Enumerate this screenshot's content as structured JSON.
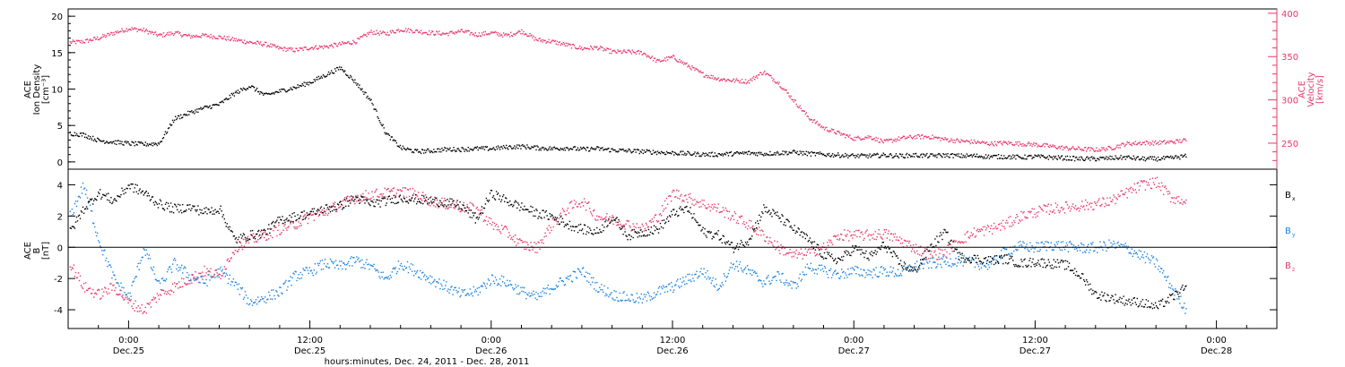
{
  "figure": {
    "x_title": "hours:minutes, Dec. 24, 2011 - Dec. 28, 2011",
    "x_ticks": [
      {
        "time": "0:00",
        "date": "Dec.25",
        "hour": 0
      },
      {
        "time": "12:00",
        "date": "Dec.25",
        "hour": 12
      },
      {
        "time": "0:00",
        "date": "Dec.26",
        "hour": 24
      },
      {
        "time": "12:00",
        "date": "Dec.26",
        "hour": 36
      },
      {
        "time": "0:00",
        "date": "Dec.27",
        "hour": 48
      },
      {
        "time": "12:00",
        "date": "Dec.27",
        "hour": 60
      },
      {
        "time": "0:00",
        "date": "Dec.28",
        "hour": 72
      }
    ],
    "x_range_hours": [
      -4,
      76
    ]
  },
  "colors": {
    "black": "#000000",
    "red": "#e8386a",
    "blue": "#1a82e0"
  },
  "chart_data": [
    {
      "type": "scatter",
      "panel": "top",
      "ylabel_left": [
        "ACE",
        "Ion Density",
        "[cm⁻³]"
      ],
      "ylabel_right": [
        "ACE",
        "Velocity",
        "[km/s]"
      ],
      "ylim_left": [
        -1,
        21
      ],
      "ylim_right": [
        220,
        405
      ],
      "yticks_left": [
        0,
        5,
        10,
        15,
        20
      ],
      "yticks_right": [
        250,
        300,
        350,
        400
      ],
      "series": [
        {
          "axis": "left",
          "color": "black",
          "x": [
            -3.9,
            -3,
            -2,
            -1,
            0,
            1,
            2,
            3,
            4,
            5,
            6,
            7,
            8,
            9,
            10,
            11,
            12,
            13,
            14,
            15,
            16,
            17,
            18,
            19,
            20,
            21,
            22,
            23,
            24,
            25,
            26,
            27,
            28,
            29,
            30,
            31,
            32,
            33,
            34,
            35,
            36,
            37,
            38,
            39,
            40,
            41,
            42,
            43,
            44,
            45,
            46,
            47,
            48,
            49,
            50,
            51,
            52,
            53,
            54,
            55,
            56,
            57,
            58,
            59,
            60,
            61,
            62,
            63,
            64,
            65,
            66,
            67,
            68,
            69,
            70
          ],
          "y": [
            4,
            3.8,
            3,
            2.8,
            2.6,
            2.5,
            2.6,
            6,
            6.8,
            7.5,
            8,
            9.5,
            10.5,
            9.2,
            9.8,
            10.3,
            11,
            12,
            13,
            11,
            8.5,
            4,
            2,
            1.5,
            1.6,
            1.8,
            1.8,
            1.9,
            1.9,
            2.1,
            2.2,
            2,
            1.9,
            2,
            1.8,
            1.9,
            1.7,
            1.6,
            1.5,
            1.4,
            1.3,
            1.2,
            1.1,
            1.1,
            1.2,
            1.3,
            1.2,
            1.3,
            1.4,
            1.2,
            1.1,
            1,
            0.9,
            0.9,
            1,
            0.9,
            1,
            0.9,
            1,
            0.9,
            0.9,
            0.8,
            0.8,
            0.7,
            0.8,
            0.7,
            0.6,
            0.5,
            0.5,
            0.6,
            0.7,
            0.5,
            0.5,
            0.6,
            0.9
          ]
        },
        {
          "axis": "right",
          "color": "red",
          "x": [
            -3.9,
            -3,
            -2,
            -1,
            0,
            1,
            2,
            3,
            4,
            5,
            6,
            7,
            8,
            9,
            10,
            11,
            12,
            13,
            14,
            15,
            16,
            17,
            18,
            19,
            20,
            21,
            22,
            23,
            24,
            25,
            26,
            27,
            28,
            29,
            30,
            31,
            32,
            33,
            34,
            35,
            36,
            37,
            38,
            39,
            40,
            41,
            42,
            43,
            44,
            45,
            46,
            47,
            48,
            49,
            50,
            51,
            52,
            53,
            54,
            55,
            56,
            57,
            58,
            59,
            60,
            61,
            62,
            63,
            64,
            65,
            66,
            67,
            68,
            69,
            70
          ],
          "y": [
            367,
            368,
            372,
            378,
            383,
            381,
            375,
            378,
            374,
            375,
            373,
            370,
            367,
            365,
            360,
            358,
            361,
            362,
            365,
            368,
            379,
            377,
            382,
            380,
            378,
            377,
            380,
            376,
            378,
            375,
            380,
            370,
            368,
            364,
            360,
            361,
            356,
            356,
            355,
            345,
            350,
            340,
            330,
            325,
            323,
            322,
            333,
            320,
            300,
            280,
            268,
            262,
            256,
            258,
            252,
            256,
            258,
            258,
            255,
            253,
            252,
            250,
            251,
            250,
            249,
            247,
            245,
            244,
            243,
            245,
            250,
            251,
            251,
            252,
            254
          ]
        }
      ]
    },
    {
      "type": "scatter",
      "panel": "bottom",
      "ylabel_left": [
        "ACE",
        "B",
        "[nT]"
      ],
      "ylim": [
        -5.2,
        5
      ],
      "yticks": [
        4,
        2,
        0,
        -2,
        -4
      ],
      "zero_line": true,
      "legend": [
        {
          "label": "B",
          "sub": "x",
          "color": "black"
        },
        {
          "label": "B",
          "sub": "y",
          "color": "blue"
        },
        {
          "label": "B",
          "sub": "z",
          "color": "red"
        }
      ],
      "series": [
        {
          "name": "Bx",
          "color": "black",
          "x": [
            -3.9,
            -3,
            -2,
            -1,
            0,
            1,
            2,
            3,
            4,
            5,
            6,
            7,
            8,
            9,
            10,
            11,
            12,
            13,
            14,
            15,
            16,
            17,
            18,
            19,
            20,
            21,
            22,
            23,
            24,
            25,
            26,
            27,
            28,
            29,
            30,
            31,
            32,
            33,
            34,
            35,
            36,
            37,
            38,
            39,
            40,
            41,
            42,
            43,
            44,
            45,
            46,
            47,
            48,
            49,
            50,
            51,
            52,
            53,
            54,
            55,
            56,
            57,
            58,
            59,
            60,
            61,
            62,
            63,
            64,
            65,
            66,
            67,
            68,
            69,
            70
          ],
          "y": [
            1,
            2.5,
            3.5,
            3,
            4,
            3.5,
            2.8,
            2.5,
            2.6,
            2.3,
            2.5,
            0.5,
            0.8,
            1,
            1.8,
            2,
            2.2,
            2.5,
            2.7,
            3.2,
            2.8,
            3,
            3.2,
            3.1,
            3,
            2.9,
            2.7,
            1.8,
            3.5,
            3,
            2.6,
            2.2,
            2,
            1.5,
            1.2,
            1,
            2,
            0.8,
            1,
            1.2,
            2.2,
            2.5,
            1,
            0.8,
            0,
            0.5,
            2.5,
            2,
            1.2,
            0.5,
            -0.5,
            -0.8,
            0,
            -0.6,
            0.2,
            -1,
            -1.5,
            0,
            1,
            -0.6,
            -0.7,
            -0.8,
            -0.7,
            -1,
            -0.9,
            -1,
            -1.1,
            -1.8,
            -3,
            -3.2,
            -3.4,
            -3.5,
            -3.8,
            -3.2,
            -2.5
          ]
        },
        {
          "name": "By",
          "color": "blue",
          "x": [
            -3.9,
            -3,
            -2,
            -1,
            0,
            1,
            2,
            3,
            4,
            5,
            6,
            7,
            8,
            9,
            10,
            11,
            12,
            13,
            14,
            15,
            16,
            17,
            18,
            19,
            20,
            21,
            22,
            23,
            24,
            25,
            26,
            27,
            28,
            29,
            30,
            31,
            32,
            33,
            34,
            35,
            36,
            37,
            38,
            39,
            40,
            41,
            42,
            43,
            44,
            45,
            46,
            47,
            48,
            49,
            50,
            51,
            52,
            53,
            54,
            55,
            56,
            57,
            58,
            59,
            60,
            61,
            62,
            63,
            64,
            65,
            66,
            67,
            68,
            69,
            70
          ],
          "y": [
            2,
            4,
            0.5,
            -2,
            -3.2,
            0,
            -2.5,
            -1,
            -1.8,
            -2.2,
            -1.5,
            -2.3,
            -3.5,
            -3.2,
            -2.8,
            -1.8,
            -1.5,
            -1,
            -1.2,
            -0.8,
            -1.2,
            -2,
            -1,
            -1.5,
            -2,
            -2.5,
            -3,
            -2.8,
            -2,
            -2.2,
            -2.8,
            -3.2,
            -2.5,
            -2,
            -1.5,
            -2.5,
            -3,
            -3.2,
            -3.3,
            -2.8,
            -2.5,
            -2,
            -1.5,
            -2.5,
            -1,
            -1.5,
            -2.2,
            -1.8,
            -2.5,
            -1.2,
            -1.5,
            -1.7,
            -1.5,
            -1.6,
            -1.5,
            -1.6,
            -1.2,
            -1,
            -0.9,
            -0.8,
            -1,
            -1.1,
            -0.2,
            0.1,
            0,
            0.2,
            0.1,
            0,
            0,
            0.2,
            0,
            -0.5,
            -1,
            -2.5,
            -4
          ]
        },
        {
          "name": "Bz",
          "color": "red",
          "x": [
            -3.9,
            -3,
            -2,
            -1,
            0,
            1,
            2,
            3,
            4,
            5,
            6,
            7,
            8,
            9,
            10,
            11,
            12,
            13,
            14,
            15,
            16,
            17,
            18,
            19,
            20,
            21,
            22,
            23,
            24,
            25,
            26,
            27,
            28,
            29,
            30,
            31,
            32,
            33,
            34,
            35,
            36,
            37,
            38,
            39,
            40,
            41,
            42,
            43,
            44,
            45,
            46,
            47,
            48,
            49,
            50,
            51,
            52,
            53,
            54,
            55,
            56,
            57,
            58,
            59,
            60,
            61,
            62,
            63,
            64,
            65,
            66,
            67,
            68,
            69,
            70
          ],
          "y": [
            -1,
            -2.5,
            -3,
            -2.5,
            -3.5,
            -4,
            -3,
            -2.5,
            -2,
            -1.5,
            -1.8,
            0,
            0.5,
            0.8,
            1.2,
            1.5,
            2,
            2.3,
            2.8,
            3.2,
            3.4,
            3.5,
            3.6,
            3.4,
            3,
            2.8,
            2.6,
            2.5,
            1.5,
            1,
            0.2,
            0,
            1.5,
            2.5,
            3,
            2,
            1.8,
            1.5,
            1.2,
            2,
            3.5,
            3.2,
            2.8,
            2.5,
            2,
            1.5,
            0.8,
            0,
            -0.5,
            -0.3,
            0,
            0.8,
            0.8,
            0.8,
            0.9,
            0.5,
            0,
            -0.5,
            -0.3,
            0.5,
            1,
            1.2,
            1.5,
            2,
            2.3,
            2.5,
            2.6,
            2.7,
            2.8,
            3,
            3.5,
            4,
            4.2,
            3.2,
            3
          ]
        }
      ]
    }
  ]
}
